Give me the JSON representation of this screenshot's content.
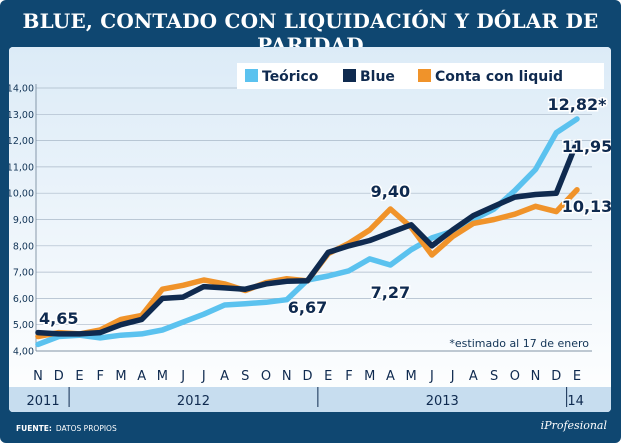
{
  "chart_data": {
    "type": "line",
    "title": "BLUE, CONTADO CON LIQUIDACIÓN Y DÓLAR DE PARIDAD",
    "x": [
      "N",
      "D",
      "E",
      "F",
      "M",
      "A",
      "M",
      "J",
      "J",
      "A",
      "S",
      "O",
      "N",
      "D",
      "E",
      "F",
      "M",
      "A",
      "M",
      "J",
      "J",
      "A",
      "S",
      "O",
      "N",
      "D",
      "E"
    ],
    "years": [
      "2011",
      "2012",
      "2013",
      "14"
    ],
    "ylim": [
      4.0,
      14.0
    ],
    "yticks": [
      "4,00",
      "5,00",
      "6,00",
      "7,00",
      "8,00",
      "9,00",
      "10,00",
      "11,00",
      "12,00",
      "13,00",
      "14,00"
    ],
    "series": [
      {
        "name": "Teórico",
        "color": "#5bc2ef",
        "values": [
          4.25,
          4.55,
          4.6,
          4.5,
          4.6,
          4.65,
          4.8,
          5.1,
          5.4,
          5.75,
          5.8,
          5.85,
          5.95,
          6.7,
          6.85,
          7.05,
          7.5,
          7.27,
          7.85,
          8.3,
          8.55,
          9.0,
          9.4,
          10.1,
          10.9,
          12.3,
          12.82
        ]
      },
      {
        "name": "Blue",
        "color": "#0f2a4f",
        "values": [
          4.7,
          4.65,
          4.65,
          4.7,
          5.0,
          5.2,
          6.0,
          6.05,
          6.45,
          6.4,
          6.35,
          6.55,
          6.65,
          6.67,
          7.75,
          8.0,
          8.2,
          8.5,
          8.8,
          8.0,
          8.6,
          9.15,
          9.5,
          9.85,
          9.95,
          10.0,
          11.95
        ]
      },
      {
        "name": "Conta con liquid",
        "color": "#f0932a",
        "values": [
          4.55,
          4.7,
          4.65,
          4.8,
          5.2,
          5.35,
          6.35,
          6.5,
          6.7,
          6.55,
          6.3,
          6.6,
          6.75,
          6.67,
          7.7,
          8.1,
          8.6,
          9.4,
          8.7,
          7.65,
          8.35,
          8.85,
          9.0,
          9.2,
          9.5,
          9.3,
          10.13
        ]
      }
    ],
    "annotations": [
      {
        "text": "4,65",
        "x_index": 1,
        "value": 4.65
      },
      {
        "text": "6,67",
        "x_index": 13,
        "value": 6.67
      },
      {
        "text": "9,40",
        "x_index": 17,
        "value": 9.4
      },
      {
        "text": "7,27",
        "x_index": 17,
        "value": 7.27
      },
      {
        "text": "12,82*",
        "x_index": 26,
        "value": 12.82
      },
      {
        "text": "11,95",
        "x_index": 26,
        "value": 11.95
      },
      {
        "text": "10,13",
        "x_index": 26,
        "value": 10.13
      }
    ],
    "note": "*estimado al 17 de enero",
    "legend_position": "top-right",
    "grid": true
  },
  "footer": {
    "source_label": "FUENTE:",
    "source_value": "DATOS PROPIOS",
    "brand": "iProfesional"
  }
}
